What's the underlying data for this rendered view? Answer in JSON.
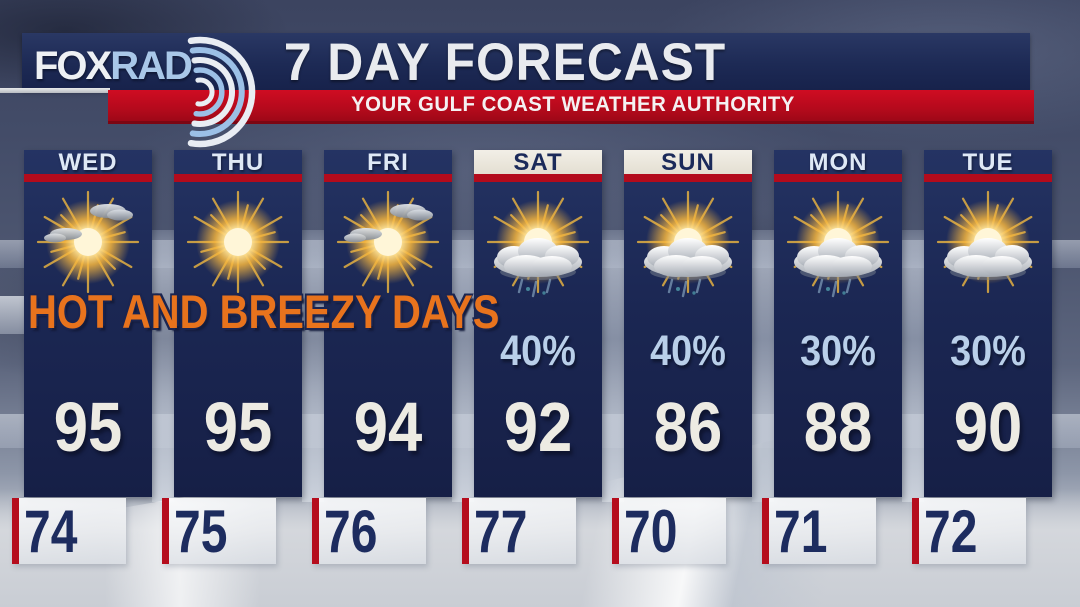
{
  "header": {
    "logo": {
      "fox": "FOX",
      "rad": "RAD"
    },
    "title": "7 DAY FORECAST",
    "subtitle": "YOUR GULF COAST WEATHER AUTHORITY"
  },
  "annotation": "HOT AND BREEZY DAYS",
  "colors": {
    "navy_panel": "#1b2753",
    "red_accent": "#b50d1d",
    "orange_annotation": "#e8731d",
    "light_blue_precip": "#b9cfe9",
    "cream_weekend_header": "#ece8dd",
    "temp_white": "#edebe3",
    "low_temp_navy": "#1d2c5f"
  },
  "forecast": {
    "days": [
      {
        "name": "WED",
        "icon": "mostly-sunny",
        "precip": "",
        "high": "95",
        "low": "74",
        "weekend": false
      },
      {
        "name": "THU",
        "icon": "sunny",
        "precip": "",
        "high": "95",
        "low": "75",
        "weekend": false
      },
      {
        "name": "FRI",
        "icon": "mostly-sunny",
        "precip": "",
        "high": "94",
        "low": "76",
        "weekend": false
      },
      {
        "name": "SAT",
        "icon": "scattered-showers",
        "precip": "40%",
        "high": "92",
        "low": "77",
        "weekend": true
      },
      {
        "name": "SUN",
        "icon": "scattered-showers",
        "precip": "40%",
        "high": "86",
        "low": "70",
        "weekend": true
      },
      {
        "name": "MON",
        "icon": "scattered-showers",
        "precip": "30%",
        "high": "88",
        "low": "71",
        "weekend": false
      },
      {
        "name": "TUE",
        "icon": "partly-cloudy",
        "precip": "30%",
        "high": "90",
        "low": "72",
        "weekend": false
      }
    ]
  }
}
